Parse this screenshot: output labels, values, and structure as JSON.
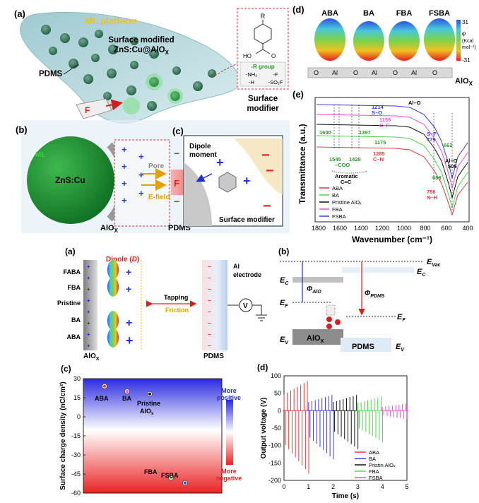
{
  "top_left": {
    "label_a": "(a)",
    "label_b": "(b)",
    "label_c": "(c)",
    "ml_platform": "ML platform",
    "surface_modified_1": "Surface modified",
    "surface_modified_2": "ZnS:Cu@AlO",
    "surface_modified_sub": "X",
    "pdms": "PDMS",
    "force": "F",
    "surface_modifier_1": "Surface",
    "surface_modifier_2": "modifier",
    "molecule_r": "R",
    "molecule_ho": "HO",
    "molecule_o": "O",
    "r_group_header": "-R group",
    "r_groups": [
      "-NH₂",
      "-F",
      "-H",
      "-SO₂F"
    ],
    "ml": "ML",
    "zns": "ZnS:Cu",
    "pore": "Pore",
    "efield": "E-field",
    "alox": "AlO",
    "alox_sub": "X",
    "pdms_b": "PDMS",
    "force_b": "F",
    "dipole_1": "Dipole",
    "dipole_2": "moment",
    "surface_modifier_c": "Surface modifier"
  },
  "top_right": {
    "label_d": "(d)",
    "label_e": "(e)",
    "molecules": [
      "ABA",
      "BA",
      "FBA",
      "FSBA"
    ],
    "colorbar_max": "31",
    "colorbar_min": "-31",
    "colorbar_unit_1": "φ",
    "colorbar_unit_2": "(Kcal",
    "colorbar_unit_3": "mol⁻¹)",
    "al": "Al",
    "o": "O",
    "alox": "AlO",
    "alox_sub": "X"
  },
  "ftir": {
    "ylabel": "Transmittance (a.u.)",
    "xlabel": "Wavenumber (cm⁻¹)",
    "ticks": [
      "1800",
      "1600",
      "1400",
      "1200",
      "1000",
      "800",
      "600",
      "400"
    ],
    "annotations": {
      "al_o": "Al–O",
      "s_o_num": "1214",
      "s_o": "S–O",
      "c_f_num": "1156",
      "c_f": "C–F",
      "n1600": "1600",
      "n1397": "1397",
      "n1175": "1175",
      "n1545": "1545",
      "n1429": "1429",
      "coo": "–COO",
      "n1285": "1285",
      "c_n": "C–N",
      "aromatic_1": "Aromatic",
      "aromatic_2": "C=C",
      "s_f": "S–F",
      "n779": "779",
      "n662": "662",
      "n686": "686",
      "n786": "786",
      "n_h": "N–H",
      "al_o_505_1": "Al–O",
      "al_o_505_2": "505"
    },
    "legend": [
      "ABA",
      "BA",
      "Pristine AlOₓ",
      "FBA",
      "FSBA"
    ]
  },
  "middle_left": {
    "label_a": "(a)",
    "dipole": "Dipole (",
    "dipole_d": "D",
    "dipole_close": ")",
    "rows": [
      "FABA",
      "FBA",
      "Pristine",
      "BA",
      "ABA"
    ],
    "alox": "AlO",
    "alox_sub": "X",
    "pdms": "PDMS",
    "tapping": "Tapping",
    "friction": "Friction",
    "electrode_1": "Al",
    "electrode_2": "electrode",
    "v": "V"
  },
  "middle_right": {
    "label_b": "(b)",
    "evac": "E",
    "evac_sub": "Vac",
    "ec_left": "E",
    "ec_sub": "C",
    "ec_right": "E",
    "phi_alo": "Φ",
    "phi_alo_sub": "AlO",
    "phi_pdms": "Φ",
    "phi_pdms_sub": "PDMS",
    "ef_left": "E",
    "ef_sub": "F",
    "ef_right": "E",
    "ev_left": "E",
    "ev_sub": "V",
    "ev_right": "E",
    "alox": "AlO",
    "alox_sub": "X",
    "pdms": "PDMS"
  },
  "bottom_left": {
    "label_c": "(c)",
    "ylabel": "Surface charge density (nC/cm²)",
    "more_positive_1": "More",
    "more_positive_2": "positive",
    "more_negative_1": "More",
    "more_negative_2": "negative",
    "pristine_1": "Pristine",
    "pristine_2": "AlO",
    "pristine_sub": "x"
  },
  "bottom_right": {
    "label_d": "(d)",
    "ylabel": "Output voltage (V)",
    "xlabel": "Time (s)"
  },
  "chart_data": [
    {
      "type": "scatter",
      "ylim": [
        -60,
        30
      ],
      "yticks": [
        "30",
        "15",
        "0",
        "-15",
        "-30",
        "-45",
        "-60"
      ],
      "points": [
        {
          "label": "ABA",
          "y": 24
        },
        {
          "label": "BA",
          "y": 20
        },
        {
          "label": "Pristine AlOx",
          "y": 18
        },
        {
          "label": "FBA",
          "y": -48
        },
        {
          "label": "FSBA",
          "y": -52
        }
      ],
      "colors": [
        "#e0393f",
        "#e84fd8",
        "#111111",
        "#4cd64c",
        "#3a3adf"
      ]
    },
    {
      "type": "line",
      "xlim": [
        0,
        5
      ],
      "ylim": [
        -200,
        100
      ],
      "xticks": [
        "0",
        "1",
        "2",
        "3",
        "4",
        "5"
      ],
      "yticks": [
        "100",
        "50",
        "0",
        "-50",
        "-100",
        "-150",
        "-200"
      ],
      "series": [
        {
          "name": "ABA",
          "color": "#e0393f",
          "t_start": 0.0,
          "t_end": 0.95,
          "amp_pos": 85,
          "amp_neg": -180
        },
        {
          "name": "BA",
          "color": "#3a3adf",
          "t_start": 1.0,
          "t_end": 1.95,
          "amp_pos": 45,
          "amp_neg": -140
        },
        {
          "name": "Pristin AlOₓ",
          "color": "#111111",
          "t_start": 2.0,
          "t_end": 2.95,
          "amp_pos": 45,
          "amp_neg": -110
        },
        {
          "name": "FBA",
          "color": "#4cd64c",
          "t_start": 3.0,
          "t_end": 3.95,
          "amp_pos": 40,
          "amp_neg": -90
        },
        {
          "name": "FSBA",
          "color": "#e84fd8",
          "t_start": 4.0,
          "t_end": 4.95,
          "amp_pos": 20,
          "amp_neg": -25
        }
      ]
    }
  ]
}
